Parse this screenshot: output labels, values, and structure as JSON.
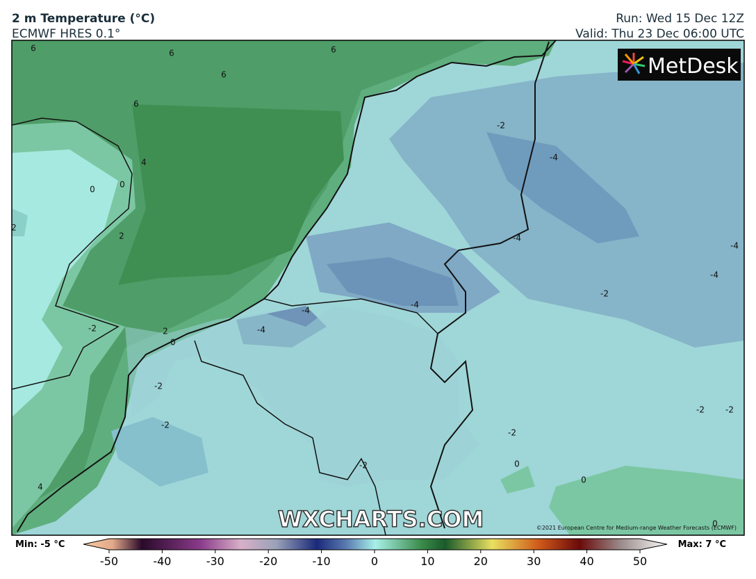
{
  "header": {
    "title": "2 m Temperature (°C)",
    "subtitle": "ECMWF HRES 0.1°",
    "run": "Run: Wed 15 Dec 12Z",
    "valid": "Valid: Thu 23 Dec 06:00 UTC"
  },
  "logo": "MetDesk",
  "watermark": "WXCHARTS.COM",
  "copyright": "©2021 European Centre for Medium-range Weather Forecasts (ECMWF)",
  "contour_labels": [
    "6",
    "6",
    "6",
    "6",
    "6",
    "4",
    "0",
    "0",
    "2",
    "2",
    "-2",
    "2",
    "0",
    "-2",
    "-2",
    "4",
    "-2",
    "-4",
    "-4",
    "-4",
    "-4",
    "-2",
    "-4",
    "-4",
    "-4",
    "-2",
    "-2",
    "-2",
    "0",
    "0",
    "-2",
    "0"
  ],
  "colorbar": {
    "min_label": "Min: -5 °C",
    "max_label": "Max: 7 °C",
    "ticks": [
      -50,
      -40,
      -30,
      -20,
      -10,
      0,
      10,
      20,
      30,
      40,
      50
    ]
  }
}
